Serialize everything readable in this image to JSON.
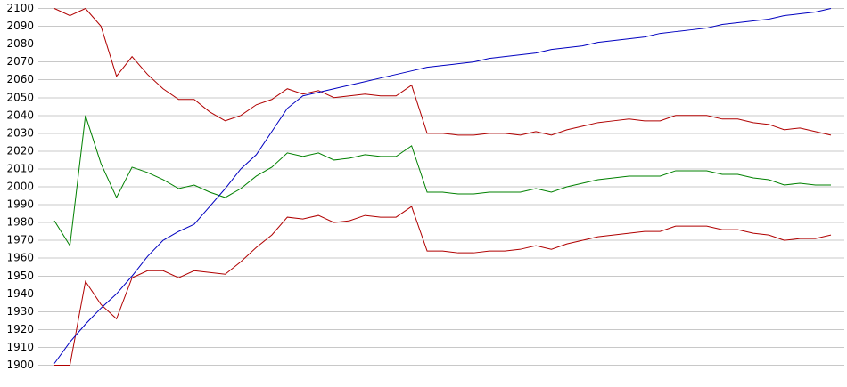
{
  "chart_data": {
    "type": "line",
    "categories": [
      null,
      null,
      null,
      null,
      null,
      null,
      null,
      null,
      null,
      null,
      null,
      null,
      null,
      null,
      null,
      null,
      null,
      null,
      null,
      null,
      null,
      null,
      null,
      null,
      null,
      null,
      null,
      null,
      null,
      null,
      null,
      null,
      null,
      null,
      null,
      null,
      null,
      null,
      null,
      null,
      null,
      null,
      null,
      null,
      null,
      null,
      null,
      null,
      null,
      null,
      null
    ],
    "series": [
      {
        "color": "#b00000",
        "values": [
          2100,
          2096,
          2100,
          2090,
          2062,
          2073,
          2063,
          2055,
          2049,
          2049,
          2042,
          2037,
          2040,
          2046,
          2049,
          2055,
          2052,
          2054,
          2050,
          2051,
          2052,
          2051,
          2051,
          2057,
          2030,
          2030,
          2029,
          2029,
          2030,
          2030,
          2029,
          2031,
          2029,
          2032,
          2034,
          2036,
          2037,
          2038,
          2037,
          2037,
          2040,
          2040,
          2040,
          2038,
          2038,
          2036,
          2035,
          2032,
          2033,
          2031,
          2029
        ]
      },
      {
        "color": "#008000",
        "values": [
          1981,
          1967,
          2040,
          2013,
          1994,
          2011,
          2008,
          2004,
          1999,
          2001,
          1997,
          1994,
          1999,
          2006,
          2011,
          2019,
          2017,
          2019,
          2015,
          2016,
          2018,
          2017,
          2017,
          2023,
          1997,
          1997,
          1996,
          1996,
          1997,
          1997,
          1997,
          1999,
          1997,
          2000,
          2002,
          2004,
          2005,
          2006,
          2006,
          2006,
          2009,
          2009,
          2009,
          2007,
          2007,
          2005,
          2004,
          2001,
          2002,
          2001,
          2001
        ]
      },
      {
        "color": "#b00000",
        "values": [
          1900,
          1900,
          1947,
          1934,
          1926,
          1949,
          1953,
          1953,
          1949,
          1953,
          1952,
          1951,
          1958,
          1966,
          1973,
          1983,
          1982,
          1984,
          1980,
          1981,
          1984,
          1983,
          1983,
          1989,
          1964,
          1964,
          1963,
          1963,
          1964,
          1964,
          1965,
          1967,
          1965,
          1968,
          1970,
          1972,
          1973,
          1974,
          1975,
          1975,
          1978,
          1978,
          1978,
          1976,
          1976,
          1974,
          1973,
          1970,
          1971,
          1971,
          1973
        ]
      },
      {
        "color": "#0000c0",
        "values": [
          1901,
          1913,
          1923,
          1932,
          1940,
          1950,
          1961,
          1970,
          1975,
          1979,
          1989,
          1999,
          2010,
          2018,
          2031,
          2044,
          2051,
          2053,
          2055,
          2057,
          2059,
          2061,
          2063,
          2065,
          2067,
          2068,
          2069,
          2070,
          2072,
          2073,
          2074,
          2075,
          2077,
          2078,
          2079,
          2081,
          2082,
          2083,
          2084,
          2086,
          2087,
          2088,
          2089,
          2091,
          2092,
          2093,
          2094,
          2096,
          2097,
          2098,
          2100
        ]
      }
    ],
    "ylim": [
      1900,
      2100
    ],
    "yticks": [
      1900,
      1910,
      1920,
      1930,
      1940,
      1950,
      1960,
      1970,
      1980,
      1990,
      2000,
      2010,
      2020,
      2030,
      2040,
      2050,
      2060,
      2070,
      2080,
      2090,
      2100
    ],
    "grid": true
  }
}
